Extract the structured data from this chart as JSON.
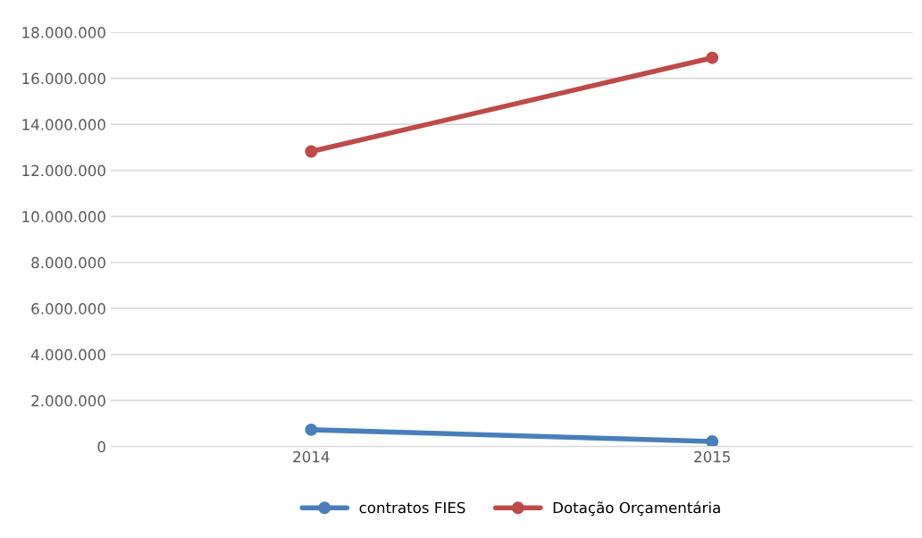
{
  "chart_data": {
    "type": "line",
    "categories": [
      "2014",
      "2015"
    ],
    "series": [
      {
        "name": "contratos FIES",
        "color": "#4a7ebb",
        "values": [
          730000,
          220000
        ]
      },
      {
        "name": "Dotação Orçamentária",
        "color": "#be4b48",
        "values": [
          12820000,
          16890000
        ]
      }
    ],
    "ylim": [
      0,
      18000000
    ],
    "yticks": [
      {
        "value": 0,
        "label": "0"
      },
      {
        "value": 2000000,
        "label": "2.000.000"
      },
      {
        "value": 4000000,
        "label": "4.000.000"
      },
      {
        "value": 6000000,
        "label": "6.000.000"
      },
      {
        "value": 8000000,
        "label": "8.000.000"
      },
      {
        "value": 10000000,
        "label": "10.000.000"
      },
      {
        "value": 12000000,
        "label": "12.000.000"
      },
      {
        "value": 14000000,
        "label": "14.000.000"
      },
      {
        "value": 16000000,
        "label": "16.000.000"
      },
      {
        "value": 18000000,
        "label": "18.000.000"
      }
    ],
    "grid": "y",
    "legend": "bottom",
    "marker": "circle",
    "line_style": "solid"
  }
}
